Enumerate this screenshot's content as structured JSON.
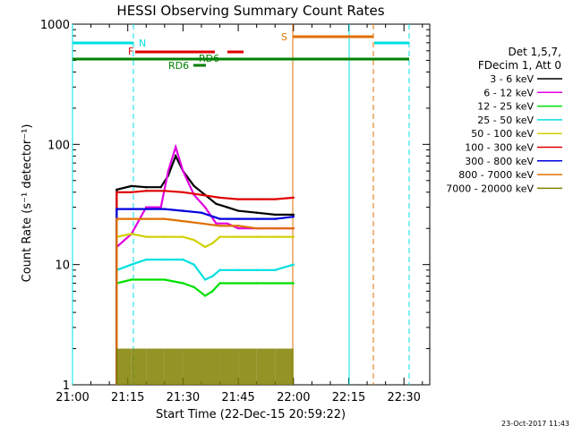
{
  "chart_data": {
    "type": "line",
    "title": "HESSI Observing Summary Count Rates",
    "xlabel": "Start Time (22-Dec-15 20:59:22)",
    "ylabel": "Count Rate (s⁻¹ detector⁻¹)",
    "y_scale": "log",
    "ylim": [
      1,
      1000
    ],
    "y_ticks": [
      "1",
      "10",
      "100",
      "1000"
    ],
    "xlim": [
      "21:00",
      "22:37"
    ],
    "x_ticks": [
      "21:00",
      "21:15",
      "21:30",
      "21:45",
      "22:00",
      "22:15",
      "22:30"
    ],
    "footer_date": "23-Oct-2017 11:43",
    "legend": {
      "header": [
        "Det 1,5,7,",
        "FDecim 1, Att 0"
      ],
      "position": "right"
    },
    "flags": [
      {
        "label": "N",
        "color": "#00e0e0"
      },
      {
        "label": "F",
        "color": "#e00000"
      },
      {
        "label": "RD6",
        "color": "#008000"
      },
      {
        "label": "S",
        "color": "#e07000"
      },
      {
        "label": "RD6",
        "color": "#008000"
      }
    ],
    "series": [
      {
        "name": "3 - 6 keV",
        "color": "#000000",
        "x": [
          "21:12",
          "21:16",
          "21:20",
          "21:24",
          "21:26",
          "21:28",
          "21:30",
          "21:33",
          "21:36",
          "21:39",
          "21:42",
          "21:45",
          "21:50",
          "21:55",
          "22:00"
        ],
        "y": [
          42,
          45,
          44,
          44,
          55,
          80,
          60,
          45,
          38,
          32,
          30,
          28,
          27,
          26,
          26
        ]
      },
      {
        "name": "6 - 12 keV",
        "color": "#e000e0",
        "x": [
          "21:12",
          "21:16",
          "21:20",
          "21:24",
          "21:26",
          "21:28",
          "21:30",
          "21:33",
          "21:36",
          "21:39",
          "21:42",
          "21:45",
          "21:50",
          "21:55",
          "22:00"
        ],
        "y": [
          14,
          18,
          30,
          30,
          60,
          95,
          60,
          38,
          30,
          22,
          22,
          20,
          20,
          20,
          20
        ]
      },
      {
        "name": "12 - 25 keV",
        "color": "#00e000",
        "x": [
          "21:12",
          "21:16",
          "21:20",
          "21:25",
          "21:30",
          "21:33",
          "21:36",
          "21:38",
          "21:40",
          "21:45",
          "21:50",
          "21:55",
          "22:00"
        ],
        "y": [
          7,
          7.5,
          7.5,
          7.5,
          7,
          6.5,
          5.5,
          6,
          7,
          7,
          7,
          7,
          7
        ]
      },
      {
        "name": "25 - 50 keV",
        "color": "#00e0e0",
        "x": [
          "21:12",
          "21:16",
          "21:20",
          "21:25",
          "21:30",
          "21:33",
          "21:36",
          "21:38",
          "21:40",
          "21:45",
          "21:50",
          "21:55",
          "22:00"
        ],
        "y": [
          9,
          10,
          11,
          11,
          11,
          10,
          7.5,
          8,
          9,
          9,
          9,
          9,
          10
        ]
      },
      {
        "name": "50 - 100 keV",
        "color": "#d0d000",
        "x": [
          "21:12",
          "21:16",
          "21:20",
          "21:25",
          "21:30",
          "21:33",
          "21:36",
          "21:38",
          "21:40",
          "21:45",
          "21:50",
          "21:55",
          "22:00"
        ],
        "y": [
          17,
          18,
          17,
          17,
          17,
          16,
          14,
          15,
          17,
          17,
          17,
          17,
          17
        ]
      },
      {
        "name": "100 - 300 keV",
        "color": "#e00000",
        "x": [
          "21:12",
          "21:16",
          "21:20",
          "21:25",
          "21:30",
          "21:35",
          "21:40",
          "21:45",
          "21:50",
          "21:55",
          "22:00"
        ],
        "y": [
          40,
          40,
          41,
          41,
          40,
          38,
          36,
          35,
          35,
          35,
          36
        ]
      },
      {
        "name": "300 - 800 keV",
        "color": "#0000e0",
        "x": [
          "21:12",
          "21:16",
          "21:20",
          "21:25",
          "21:30",
          "21:35",
          "21:40",
          "21:45",
          "21:50",
          "21:55",
          "22:00"
        ],
        "y": [
          29,
          29,
          29,
          29,
          28,
          27,
          24,
          24,
          24,
          24,
          25
        ]
      },
      {
        "name": "800 - 7000 keV",
        "color": "#e07000",
        "x": [
          "21:12",
          "21:16",
          "21:20",
          "21:25",
          "21:30",
          "21:35",
          "21:40",
          "21:45",
          "21:50",
          "21:55",
          "22:00"
        ],
        "y": [
          24,
          24,
          24,
          24,
          23,
          22,
          21,
          21,
          20,
          20,
          20
        ]
      },
      {
        "name": "7000 - 20000 keV",
        "color": "#808000",
        "x": [
          "21:12",
          "21:16",
          "21:20",
          "21:25",
          "21:30",
          "21:35",
          "21:40",
          "21:45",
          "21:50",
          "21:55",
          "22:00"
        ],
        "y": [
          2,
          2,
          2,
          2,
          2,
          2,
          2,
          2,
          2,
          2,
          2
        ]
      }
    ]
  }
}
